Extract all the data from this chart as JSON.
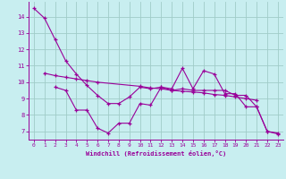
{
  "xlabel": "Windchill (Refroidissement éolien,°C)",
  "background_color": "#c8eef0",
  "line_color": "#990099",
  "grid_color": "#a0ccc8",
  "x_values": [
    0,
    1,
    2,
    3,
    4,
    5,
    6,
    7,
    8,
    9,
    10,
    11,
    12,
    13,
    14,
    15,
    16,
    17,
    18,
    19,
    20,
    21,
    22,
    23
  ],
  "line_top_y": [
    14.5,
    13.9,
    12.6,
    11.3,
    10.5,
    9.8,
    9.2,
    8.7,
    8.7,
    9.1,
    9.7,
    9.6,
    9.7,
    9.5,
    9.6,
    9.5,
    9.5,
    9.5,
    9.5,
    9.2,
    9.2,
    8.5,
    7.0,
    6.9
  ],
  "line_mid_x": [
    1,
    2,
    3,
    4,
    5,
    6,
    10,
    11,
    12,
    13,
    14,
    15,
    16,
    17,
    18,
    19,
    20,
    21
  ],
  "line_mid_y": [
    10.55,
    10.4,
    10.3,
    10.2,
    10.1,
    10.0,
    9.75,
    9.65,
    9.6,
    9.5,
    9.45,
    9.4,
    9.35,
    9.25,
    9.2,
    9.1,
    9.0,
    8.9
  ],
  "line_bot_x": [
    2,
    3,
    4,
    5,
    6,
    7,
    8,
    9,
    10,
    11,
    12,
    13,
    14,
    15,
    16,
    17,
    18,
    19,
    20,
    21,
    22,
    23
  ],
  "line_bot_y": [
    9.7,
    9.5,
    8.3,
    8.3,
    7.2,
    6.9,
    7.5,
    7.5,
    8.7,
    8.6,
    9.7,
    9.6,
    10.85,
    9.6,
    10.7,
    10.5,
    9.3,
    9.3,
    8.5,
    8.5,
    7.0,
    6.85
  ],
  "ylim": [
    6.5,
    14.9
  ],
  "xlim": [
    -0.5,
    23.5
  ],
  "yticks": [
    7,
    8,
    9,
    10,
    11,
    12,
    13,
    14
  ],
  "xticks": [
    0,
    1,
    2,
    3,
    4,
    5,
    6,
    7,
    8,
    9,
    10,
    11,
    12,
    13,
    14,
    15,
    16,
    17,
    18,
    19,
    20,
    21,
    22,
    23
  ]
}
